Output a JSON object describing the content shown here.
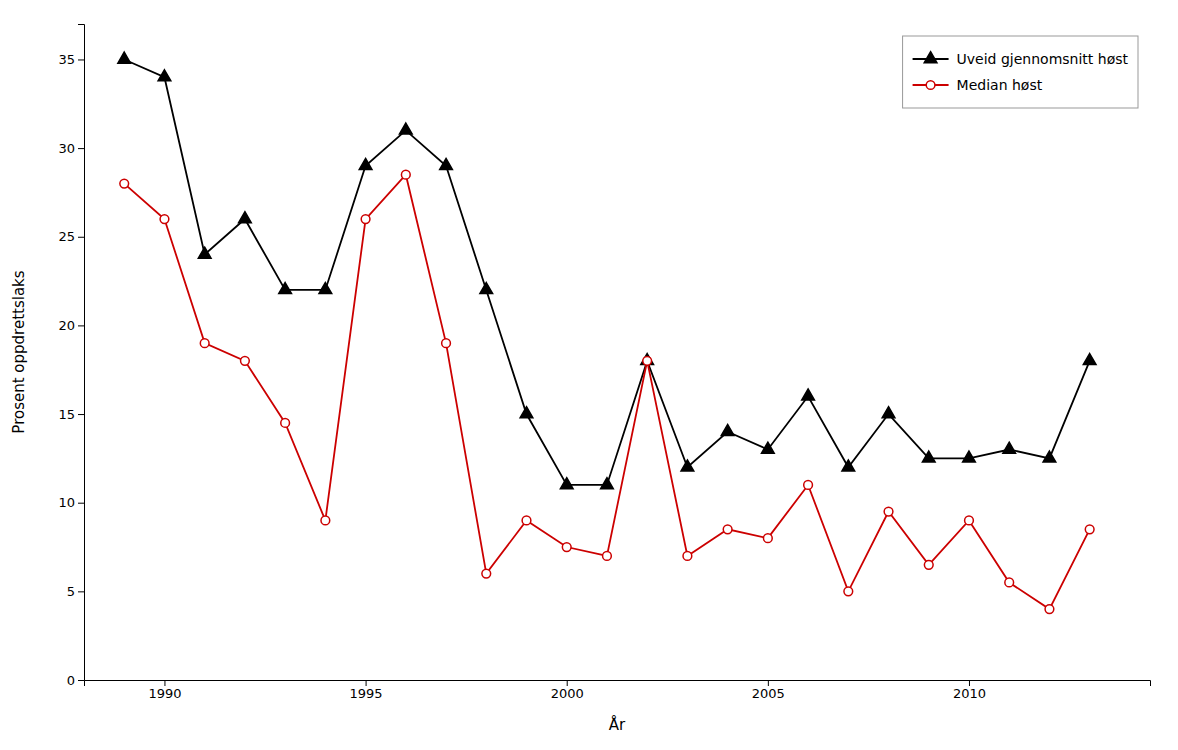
{
  "chart_data": {
    "type": "line",
    "xlabel": "År",
    "ylabel": "Prosent oppdrettslaks",
    "x": [
      1989,
      1990,
      1991,
      1992,
      1993,
      1994,
      1995,
      1996,
      1997,
      1998,
      1999,
      2000,
      2001,
      2002,
      2003,
      2004,
      2005,
      2006,
      2007,
      2008,
      2009,
      2010,
      2011,
      2012,
      2013
    ],
    "series": [
      {
        "name": "Uveid gjennomsnitt høst",
        "color": "#000000",
        "marker": "triangle",
        "values": [
          35,
          34,
          24,
          26,
          22,
          22,
          29,
          31,
          29,
          22,
          15,
          11,
          11,
          18,
          12,
          14,
          13,
          16,
          12,
          15,
          12.5,
          12.5,
          13,
          12.5,
          18
        ]
      },
      {
        "name": "Median høst",
        "color": "#cc0000",
        "marker": "circle",
        "values": [
          28,
          26,
          19,
          18,
          14.5,
          9,
          26,
          28.5,
          19,
          6,
          9,
          7.5,
          7,
          18,
          7,
          8.5,
          8,
          11,
          5,
          9.5,
          6.5,
          9,
          5.5,
          4,
          8.5
        ]
      }
    ],
    "xlim": [
      1988,
      2014.5
    ],
    "ylim": [
      0,
      37
    ],
    "xticks": [
      1990,
      1995,
      2000,
      2005,
      2010
    ],
    "yticks": [
      0,
      5,
      10,
      15,
      20,
      25,
      30,
      35
    ],
    "legend": "upper right",
    "grid": false
  }
}
